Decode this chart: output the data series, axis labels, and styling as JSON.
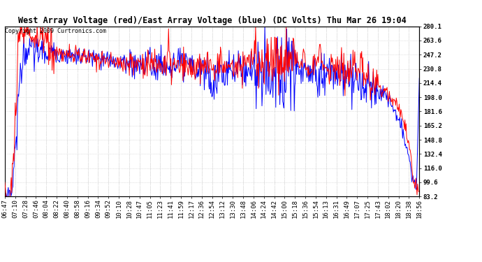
{
  "title": "West Array Voltage (red)/East Array Voltage (blue) (DC Volts) Thu Mar 26 19:04",
  "copyright": "Copyright 2009 Curtronics.com",
  "ylabel_right_ticks": [
    83.2,
    99.6,
    116.0,
    132.4,
    148.8,
    165.2,
    181.6,
    198.0,
    214.4,
    230.8,
    247.2,
    263.6,
    280.1
  ],
  "ylim": [
    83.2,
    280.1
  ],
  "x_labels": [
    "06:47",
    "07:10",
    "07:28",
    "07:46",
    "08:04",
    "08:22",
    "08:40",
    "08:58",
    "09:16",
    "09:34",
    "09:52",
    "10:10",
    "10:28",
    "10:47",
    "11:05",
    "11:23",
    "11:41",
    "11:59",
    "12:17",
    "12:36",
    "12:54",
    "13:12",
    "13:30",
    "13:48",
    "14:06",
    "14:24",
    "14:42",
    "15:00",
    "15:18",
    "15:36",
    "15:54",
    "16:13",
    "16:31",
    "16:49",
    "17:07",
    "17:25",
    "17:43",
    "18:02",
    "18:20",
    "18:38",
    "18:56"
  ],
  "title_fontsize": 8.5,
  "copyright_fontsize": 6,
  "tick_fontsize": 6.5,
  "background_color": "#ffffff",
  "grid_color": "#c8c8c8",
  "red_color": "#ff0000",
  "blue_color": "#0000ff",
  "figwidth": 6.9,
  "figheight": 3.75,
  "dpi": 100
}
